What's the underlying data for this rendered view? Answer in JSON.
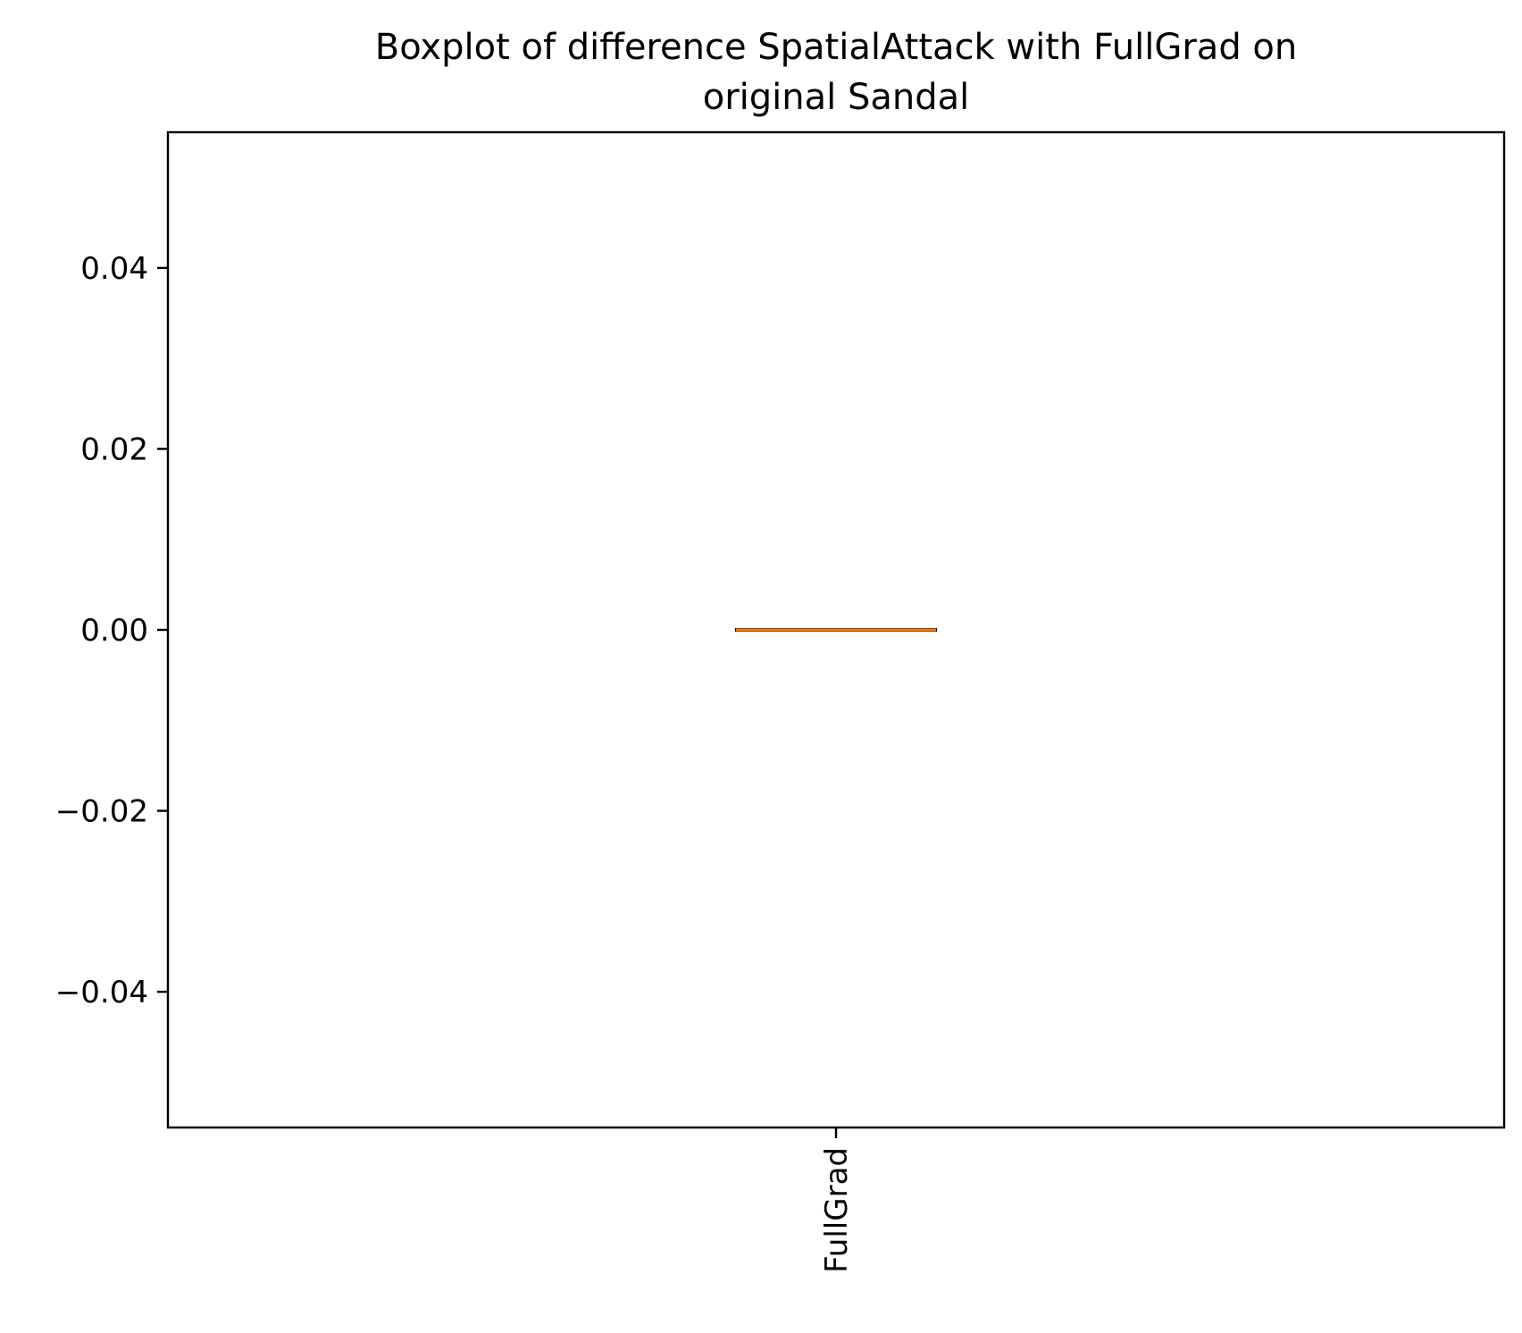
{
  "chart_data": {
    "type": "box",
    "title_lines": [
      "Boxplot of difference SpatialAttack with FullGrad on",
      "original Sandal"
    ],
    "xlabel": "",
    "ylabel": "",
    "categories": [
      "FullGrad"
    ],
    "boxes": [
      {
        "category": "FullGrad",
        "whisker_low": 0.0,
        "q1": 0.0,
        "median": 0.0,
        "q3": 0.0,
        "whisker_high": 0.0,
        "outliers": []
      }
    ],
    "ylim": [
      -0.055,
      0.055
    ],
    "yticks": [
      -0.04,
      -0.02,
      0.0,
      0.02,
      0.04
    ],
    "ytick_labels": [
      "−0.04",
      "−0.02",
      "0.00",
      "0.02",
      "0.04"
    ],
    "grid": false,
    "legend": "none",
    "colors": {
      "median": "#ff7f0e",
      "box": "#000000",
      "axes": "#000000"
    }
  }
}
